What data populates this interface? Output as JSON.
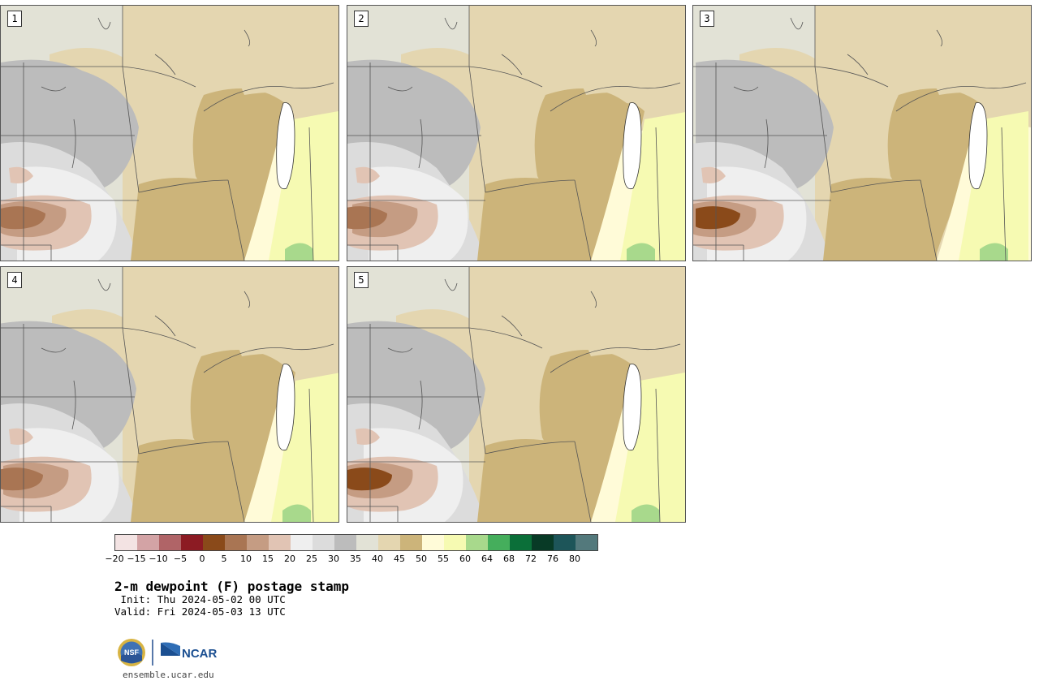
{
  "panels": [
    {
      "label": "1"
    },
    {
      "label": "2"
    },
    {
      "label": "3"
    },
    {
      "label": "4"
    },
    {
      "label": "5"
    }
  ],
  "colorbar": {
    "colors": [
      "#f3e3e3",
      "#d3a3a5",
      "#b06467",
      "#8c1b23",
      "#8a4a1a",
      "#a97553",
      "#c59c83",
      "#e1c4b4",
      "#efefef",
      "#dcdcdc",
      "#bcbcbc",
      "#e2e2d6",
      "#e4d6b0",
      "#ccb47a",
      "#fffbd8",
      "#f6fab2",
      "#a8d98c",
      "#45ae5c",
      "#0b6f39",
      "#083a26",
      "#1d5559",
      "#53797c"
    ],
    "tick_labels": [
      "−20",
      "−15",
      "−10",
      "−5",
      "0",
      "5",
      "10",
      "15",
      "20",
      "25",
      "30",
      "35",
      "40",
      "45",
      "50",
      "55",
      "60",
      "64",
      "68",
      "72",
      "76",
      "80"
    ]
  },
  "title": "2-m dewpoint (F) postage stamp",
  "init_text": " Init: Thu 2024-05-02 00 UTC",
  "valid_text": "Valid: Fri 2024-05-03 13 UTC",
  "logos": {
    "nsf": "NSF",
    "ncar": "NCAR"
  },
  "url": "ensemble.ucar.edu"
}
